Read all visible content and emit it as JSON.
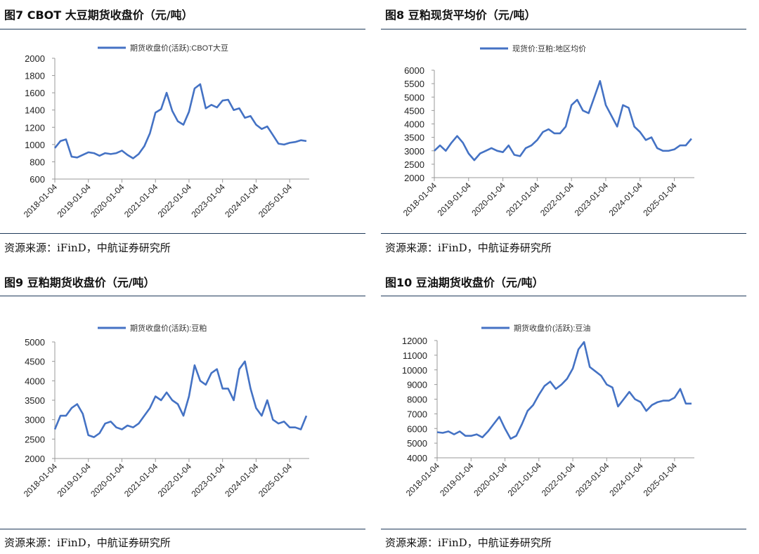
{
  "colors": {
    "line": "#4472C4",
    "rule": "#1f3a5a",
    "axis": "#999999"
  },
  "charts": [
    {
      "figure_title": "图7  CBOT 大豆期货收盘价（元/吨）",
      "source": "资源来源：iFinD，中航证券研究所",
      "chart_data": {
        "type": "line",
        "title": "",
        "legend": "期货收盘价(活跃):CBOT大豆",
        "legend_position": "top",
        "ylim": [
          600,
          2000
        ],
        "yticks": [
          600,
          800,
          1000,
          1200,
          1400,
          1600,
          1800,
          2000
        ],
        "xticks": [
          "2018-01-04",
          "2019-01-04",
          "2020-01-04",
          "2021-01-04",
          "2022-01-04",
          "2023-01-04",
          "2024-01-04",
          "2025-01-04"
        ],
        "grid": false,
        "x": [
          "2018-01",
          "2018-03",
          "2018-05",
          "2018-07",
          "2018-09",
          "2018-11",
          "2019-01",
          "2019-03",
          "2019-05",
          "2019-07",
          "2019-09",
          "2019-11",
          "2020-01",
          "2020-03",
          "2020-05",
          "2020-07",
          "2020-09",
          "2020-11",
          "2021-01",
          "2021-03",
          "2021-05",
          "2021-07",
          "2021-09",
          "2021-11",
          "2022-01",
          "2022-03",
          "2022-05",
          "2022-07",
          "2022-09",
          "2022-11",
          "2023-01",
          "2023-03",
          "2023-05",
          "2023-07",
          "2023-09",
          "2023-11",
          "2024-01",
          "2024-03",
          "2024-05",
          "2024-07",
          "2024-09",
          "2024-11",
          "2025-01",
          "2025-03",
          "2025-05",
          "2025-07"
        ],
        "values": [
          960,
          1040,
          1060,
          860,
          850,
          880,
          910,
          900,
          870,
          900,
          890,
          900,
          930,
          880,
          840,
          890,
          980,
          1130,
          1370,
          1410,
          1600,
          1390,
          1270,
          1230,
          1380,
          1650,
          1700,
          1420,
          1460,
          1430,
          1510,
          1520,
          1400,
          1420,
          1310,
          1330,
          1230,
          1180,
          1210,
          1110,
          1010,
          1000,
          1020,
          1030,
          1050,
          1040
        ]
      }
    },
    {
      "figure_title": "图8  豆粕现货平均价（元/吨）",
      "source": "资源来源：iFinD，中航证券研究所",
      "chart_data": {
        "type": "line",
        "title": "",
        "legend": "现货价:豆粕:地区均价",
        "legend_position": "top",
        "ylim": [
          2000,
          6000
        ],
        "yticks": [
          2000,
          2500,
          3000,
          3500,
          4000,
          4500,
          5000,
          5500,
          6000
        ],
        "xticks": [
          "2018-01-04",
          "2019-01-04",
          "2020-01-04",
          "2021-01-04",
          "2022-01-04",
          "2023-01-04",
          "2024-01-04",
          "2025-01-04"
        ],
        "grid": false,
        "x": [
          "2018-01",
          "2018-03",
          "2018-05",
          "2018-07",
          "2018-09",
          "2018-11",
          "2019-01",
          "2019-03",
          "2019-05",
          "2019-07",
          "2019-09",
          "2019-11",
          "2020-01",
          "2020-03",
          "2020-05",
          "2020-07",
          "2020-09",
          "2020-11",
          "2021-01",
          "2021-03",
          "2021-05",
          "2021-07",
          "2021-09",
          "2021-11",
          "2022-01",
          "2022-03",
          "2022-05",
          "2022-07",
          "2022-09",
          "2022-11",
          "2023-01",
          "2023-03",
          "2023-05",
          "2023-07",
          "2023-09",
          "2023-11",
          "2024-01",
          "2024-03",
          "2024-05",
          "2024-07",
          "2024-09",
          "2024-11",
          "2025-01",
          "2025-03",
          "2025-05",
          "2025-07"
        ],
        "values": [
          3000,
          3200,
          3000,
          3300,
          3550,
          3300,
          2900,
          2650,
          2900,
          3000,
          3100,
          3000,
          2950,
          3200,
          2850,
          2800,
          3100,
          3200,
          3400,
          3700,
          3800,
          3650,
          3650,
          3900,
          4700,
          4900,
          4500,
          4400,
          5000,
          5600,
          4700,
          4300,
          3900,
          4700,
          4600,
          3900,
          3700,
          3400,
          3500,
          3100,
          3000,
          3000,
          3050,
          3200,
          3200,
          3450
        ]
      }
    },
    {
      "figure_title": "图9  豆粕期货收盘价（元/吨）",
      "source": "资源来源：iFinD，中航证券研究所",
      "chart_data": {
        "type": "line",
        "title": "",
        "legend": "期货收盘价(活跃):豆粕",
        "legend_position": "top",
        "ylim": [
          2000,
          5000
        ],
        "yticks": [
          2000,
          2500,
          3000,
          3500,
          4000,
          4500,
          5000
        ],
        "xticks": [
          "2018-01-04",
          "2019-01-04",
          "2020-01-04",
          "2021-01-04",
          "2022-01-04",
          "2023-01-04",
          "2024-01-04",
          "2025-01-04"
        ],
        "grid": false,
        "x": [
          "2018-01",
          "2018-03",
          "2018-05",
          "2018-07",
          "2018-09",
          "2018-11",
          "2019-01",
          "2019-03",
          "2019-05",
          "2019-07",
          "2019-09",
          "2019-11",
          "2020-01",
          "2020-03",
          "2020-05",
          "2020-07",
          "2020-09",
          "2020-11",
          "2021-01",
          "2021-03",
          "2021-05",
          "2021-07",
          "2021-09",
          "2021-11",
          "2022-01",
          "2022-03",
          "2022-05",
          "2022-07",
          "2022-09",
          "2022-11",
          "2023-01",
          "2023-03",
          "2023-05",
          "2023-07",
          "2023-09",
          "2023-11",
          "2024-01",
          "2024-03",
          "2024-05",
          "2024-07",
          "2024-09",
          "2024-11",
          "2025-01",
          "2025-03",
          "2025-05",
          "2025-07"
        ],
        "values": [
          2750,
          3100,
          3100,
          3300,
          3400,
          3150,
          2600,
          2550,
          2650,
          2900,
          2950,
          2800,
          2750,
          2850,
          2800,
          2900,
          3100,
          3300,
          3600,
          3500,
          3700,
          3500,
          3400,
          3100,
          3600,
          4400,
          4000,
          3900,
          4200,
          4300,
          3800,
          3800,
          3500,
          4300,
          4500,
          3800,
          3300,
          3100,
          3500,
          3000,
          2900,
          2950,
          2800,
          2800,
          2750,
          3100
        ]
      }
    },
    {
      "figure_title": "图10  豆油期货收盘价（元/吨）",
      "source": "资源来源：iFinD，中航证券研究所",
      "chart_data": {
        "type": "line",
        "title": "",
        "legend": "期货收盘价(活跃):豆油",
        "legend_position": "top",
        "ylim": [
          4000,
          12000
        ],
        "yticks": [
          4000,
          5000,
          6000,
          7000,
          8000,
          9000,
          10000,
          11000,
          12000
        ],
        "xticks": [
          "2018-01-04",
          "2019-01-04",
          "2020-01-04",
          "2021-01-04",
          "2022-01-04",
          "2023-01-04",
          "2024-01-04",
          "2025-01-04"
        ],
        "grid": false,
        "x": [
          "2018-01",
          "2018-03",
          "2018-05",
          "2018-07",
          "2018-09",
          "2018-11",
          "2019-01",
          "2019-03",
          "2019-05",
          "2019-07",
          "2019-09",
          "2019-11",
          "2020-01",
          "2020-03",
          "2020-05",
          "2020-07",
          "2020-09",
          "2020-11",
          "2021-01",
          "2021-03",
          "2021-05",
          "2021-07",
          "2021-09",
          "2021-11",
          "2022-01",
          "2022-03",
          "2022-05",
          "2022-07",
          "2022-09",
          "2022-11",
          "2023-01",
          "2023-03",
          "2023-05",
          "2023-07",
          "2023-09",
          "2023-11",
          "2024-01",
          "2024-03",
          "2024-05",
          "2024-07",
          "2024-09",
          "2024-11",
          "2025-01",
          "2025-03",
          "2025-05",
          "2025-07"
        ],
        "values": [
          5750,
          5700,
          5800,
          5600,
          5800,
          5500,
          5500,
          5600,
          5400,
          5800,
          6300,
          6800,
          6000,
          5300,
          5500,
          6300,
          7200,
          7600,
          8300,
          8900,
          9200,
          8700,
          9000,
          9400,
          10100,
          11400,
          11900,
          10200,
          9900,
          9600,
          9000,
          8800,
          7500,
          8000,
          8500,
          8000,
          7800,
          7200,
          7600,
          7800,
          7900,
          7900,
          8100,
          8700,
          7700,
          7700
        ]
      }
    }
  ]
}
